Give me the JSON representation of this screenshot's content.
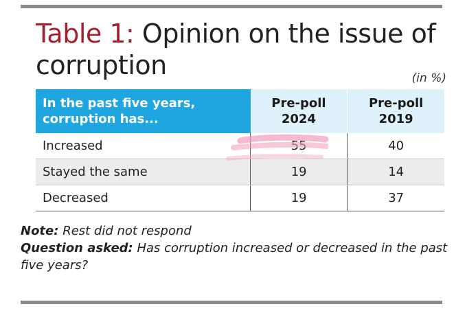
{
  "title": {
    "label": "Table 1:",
    "text": "Opinion on the issue of corruption"
  },
  "unit_note": "(in %)",
  "table": {
    "headers": {
      "question": "In the past five years, corruption has...",
      "col1": "Pre-poll 2024",
      "col2": "Pre-poll 2019"
    },
    "rows": [
      {
        "label": "Increased",
        "v2024": "55",
        "v2019": "40"
      },
      {
        "label": "Stayed the same",
        "v2024": "19",
        "v2019": "14"
      },
      {
        "label": "Decreased",
        "v2024": "19",
        "v2019": "37"
      }
    ]
  },
  "notes": {
    "note_label": "Note:",
    "note_text": "Rest did not respond",
    "question_label": "Question asked:",
    "question_text": "Has corruption increased or decreased in the past five years?"
  },
  "colors": {
    "header_blue": "#1fa5e0",
    "header_light": "#dff1fb",
    "title_label_red": "#a3202f",
    "row_shade": "#ececed",
    "rule_grey": "#8a8a8a",
    "highlight_pink": "#f2a3c0"
  }
}
